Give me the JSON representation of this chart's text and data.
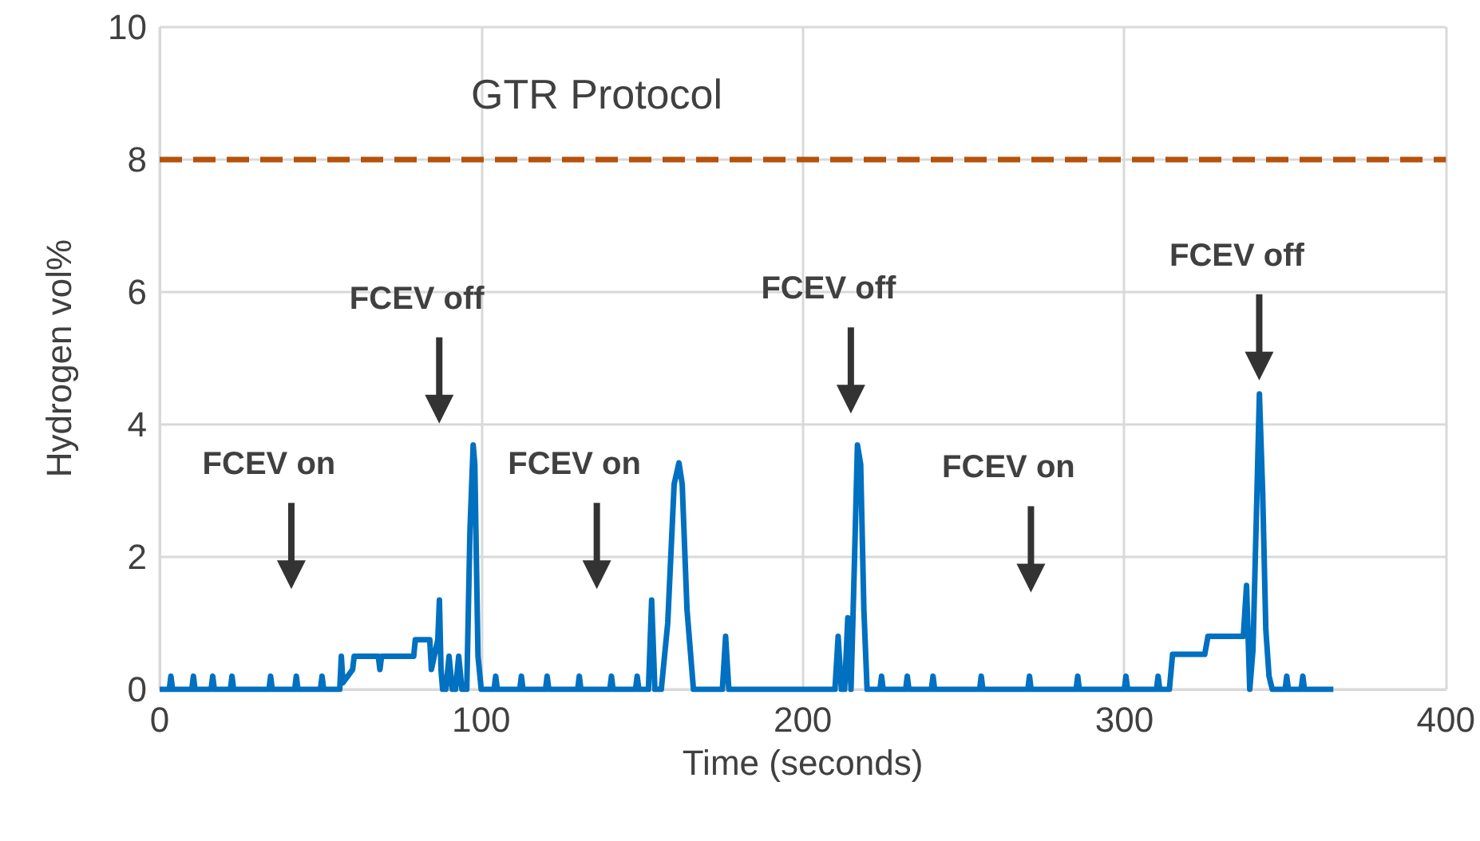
{
  "chart_data": {
    "type": "line",
    "xlabel": "Time (seconds)",
    "ylabel": "Hydrogen vol%",
    "xlim": [
      0,
      400
    ],
    "xticks": [
      0,
      100,
      200,
      300,
      400
    ],
    "ylim": [
      0,
      10
    ],
    "yticks": [
      0,
      2,
      4,
      6,
      8,
      10
    ],
    "grid": true,
    "marker": "none",
    "line_style": "solid",
    "x": [
      0,
      3,
      3.5,
      4,
      10,
      10.5,
      11,
      16,
      16.5,
      17,
      22,
      22.5,
      23,
      34,
      34.5,
      35,
      42,
      42.5,
      43,
      50,
      50.5,
      51,
      56,
      56.5,
      57,
      60,
      60.5,
      68,
      68.5,
      69,
      76,
      79,
      79.5,
      84,
      84.5,
      86.5,
      87,
      87.5,
      88,
      89,
      90,
      91,
      92,
      93,
      94,
      95.5,
      96.5,
      97.5,
      98,
      99,
      100,
      104,
      104.5,
      105,
      112,
      112.5,
      113,
      120,
      120.5,
      121,
      130,
      130.5,
      131,
      140,
      140.5,
      141,
      148,
      148.5,
      149,
      152,
      153,
      154,
      156,
      158,
      160,
      161.5,
      162.5,
      164,
      166,
      175,
      176,
      177,
      210,
      211,
      212,
      213,
      214,
      215,
      216,
      217,
      218,
      219,
      220,
      224,
      224.5,
      225,
      232,
      232.5,
      233,
      240,
      240.5,
      241,
      255,
      255.5,
      256,
      270,
      270.5,
      271,
      285,
      285.5,
      286,
      300,
      300.5,
      301,
      310,
      310.5,
      311,
      314,
      315,
      325,
      326,
      337,
      338,
      339,
      340,
      341,
      342,
      343,
      344,
      345,
      346,
      350,
      350.5,
      351,
      355,
      355.5,
      356,
      365
    ],
    "series": [
      {
        "color": "#0070c0",
        "values": [
          0,
          0,
          0.2,
          0,
          0,
          0.2,
          0,
          0,
          0.2,
          0,
          0,
          0.2,
          0,
          0,
          0.2,
          0,
          0,
          0.2,
          0,
          0,
          0.2,
          0,
          0,
          0.5,
          0.1,
          0.3,
          0.5,
          0.5,
          0.3,
          0.5,
          0.5,
          0.5,
          0.75,
          0.75,
          0.3,
          0.75,
          1.35,
          0.3,
          0,
          0,
          0.5,
          0,
          0,
          0.5,
          0,
          0,
          2.4,
          3.69,
          3.4,
          0.5,
          0,
          0,
          0.2,
          0,
          0,
          0.2,
          0,
          0,
          0.2,
          0,
          0,
          0.2,
          0,
          0,
          0.2,
          0,
          0,
          0.2,
          0,
          0,
          1.35,
          0,
          0,
          1,
          3.1,
          3.42,
          3.1,
          1.2,
          0,
          0,
          0.8,
          0,
          0,
          0.8,
          0,
          0,
          1.08,
          0,
          1.8,
          3.69,
          3.4,
          1.2,
          0,
          0,
          0.2,
          0,
          0,
          0.2,
          0,
          0,
          0.2,
          0,
          0,
          0.2,
          0,
          0,
          0.2,
          0,
          0,
          0.2,
          0,
          0,
          0.2,
          0,
          0,
          0.2,
          0,
          0,
          0.53,
          0.53,
          0.8,
          0.8,
          1.57,
          0,
          0.6,
          2.5,
          4.46,
          3,
          0.9,
          0.2,
          0,
          0,
          0.2,
          0,
          0,
          0.2,
          0,
          0
        ]
      }
    ],
    "ref_lines": [
      {
        "axis": "y",
        "value": 8,
        "label": "GTR Protocol",
        "color": "#b5520c",
        "line_style": "dashed"
      }
    ],
    "annotations": [
      "FCEV on",
      "FCEV off",
      "FCEV on",
      "FCEV off",
      "FCEV on",
      "FCEV off"
    ]
  }
}
